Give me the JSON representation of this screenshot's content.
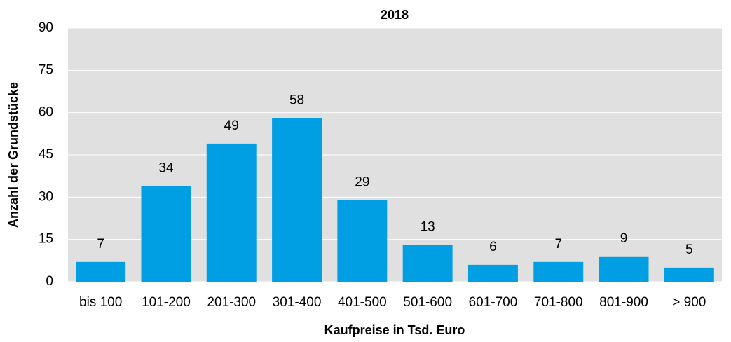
{
  "chart_data": {
    "type": "bar",
    "title": "2018",
    "x_label": "Kaufpreise in Tsd. Euro",
    "y_label": "Anzahl der Grundstücke",
    "categories": [
      "bis 100",
      "101-200",
      "201-300",
      "301-400",
      "401-500",
      "501-600",
      "601-700",
      "701-800",
      "801-900",
      "> 900"
    ],
    "values": [
      7,
      34,
      49,
      58,
      29,
      13,
      6,
      7,
      9,
      5
    ],
    "color": "#009fe3",
    "background": "#e0e0e0",
    "ylim": [
      0,
      90
    ],
    "yticks": [
      0,
      15,
      30,
      45,
      60,
      75,
      90
    ],
    "grid": true
  }
}
